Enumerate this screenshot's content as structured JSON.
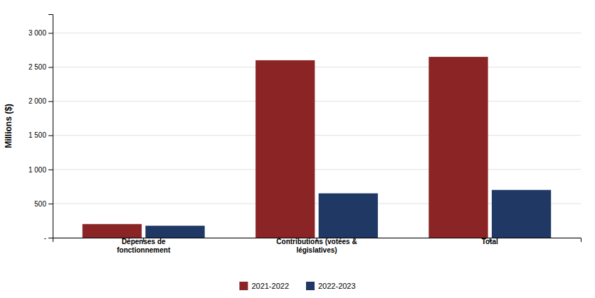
{
  "chart_data": {
    "type": "bar",
    "categories": [
      "Dépenses de\nfonctionnement",
      "Contributions (votées &\nlégislatives)",
      "Total"
    ],
    "series": [
      {
        "name": "2021-2022",
        "color": "#8B2525",
        "values": [
          200,
          2600,
          2650
        ]
      },
      {
        "name": "2022-2023",
        "color": "#1F3864",
        "values": [
          175,
          650,
          700
        ]
      }
    ],
    "ylabel": "Millions ($)",
    "ylim": [
      0,
      3275
    ],
    "yticks": [
      {
        "value": 0,
        "label": "-"
      },
      500,
      {
        "value": 1000,
        "label": "1 000"
      },
      {
        "value": 1500,
        "label": "1 500"
      },
      {
        "value": 2000,
        "label": "2 000"
      },
      {
        "value": 2500,
        "label": "2 500"
      },
      {
        "value": 3000,
        "label": "3 000"
      }
    ],
    "grid": true,
    "legend": "bottom"
  }
}
